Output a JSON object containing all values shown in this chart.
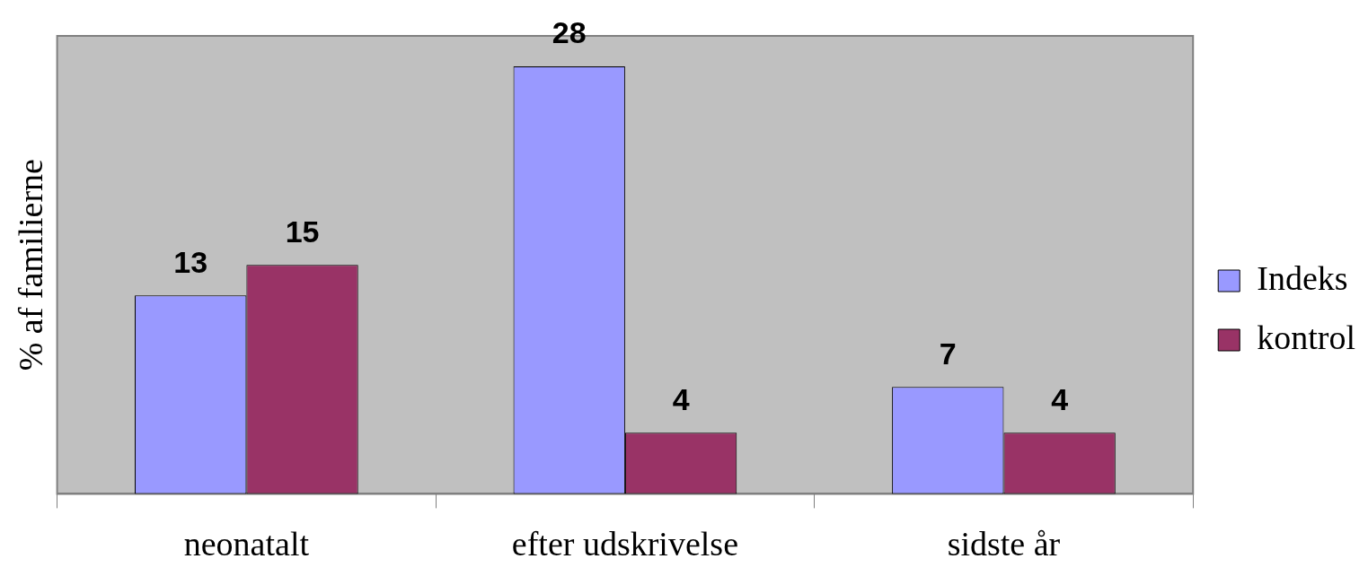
{
  "chart_data": {
    "type": "bar",
    "ylabel": "% af familierne",
    "categories": [
      "neonatalt",
      "efter udskrivelse",
      "sidste år"
    ],
    "series": [
      {
        "name": "Indeks",
        "color": "#9999ff",
        "values": [
          13,
          28,
          7
        ]
      },
      {
        "name": "kontrol",
        "color": "#993366",
        "values": [
          15,
          4,
          4
        ]
      }
    ],
    "tick_labels": "x",
    "data_labels": true,
    "legend": "right",
    "grid": false
  }
}
